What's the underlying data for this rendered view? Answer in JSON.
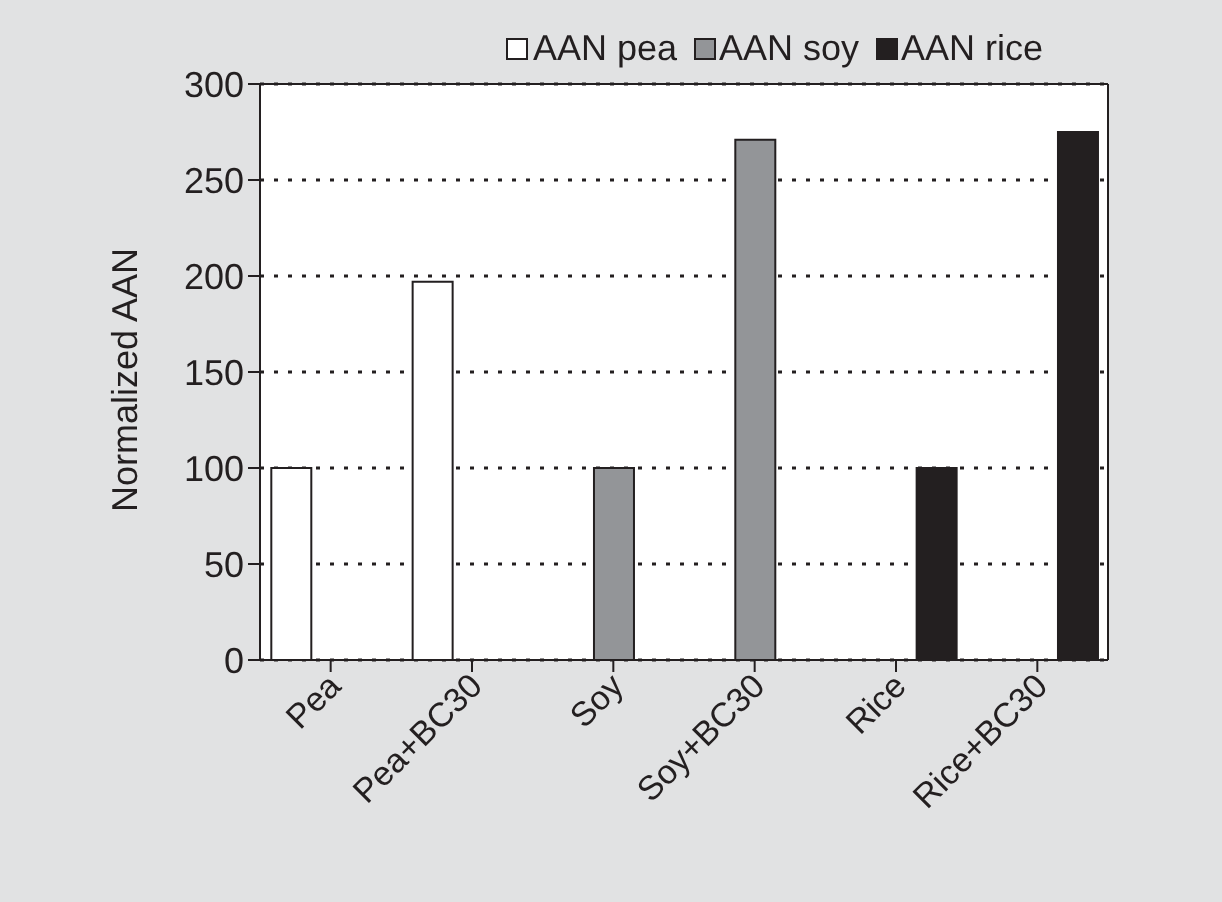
{
  "chart_data": {
    "type": "bar",
    "categories": [
      "Pea",
      "Pea+BC30",
      "Soy",
      "Soy+BC30",
      "Rice",
      "Rice+BC30"
    ],
    "series": [
      {
        "name": "AAN pea",
        "color": "#ffffff",
        "values": [
          100,
          197,
          null,
          null,
          null,
          null
        ]
      },
      {
        "name": "AAN soy",
        "color": "#939598",
        "values": [
          null,
          null,
          100,
          271,
          null,
          null
        ]
      },
      {
        "name": "AAN rice",
        "color": "#231f20",
        "values": [
          null,
          null,
          null,
          null,
          100,
          275
        ]
      }
    ],
    "ylabel": "Normalized AAN",
    "ylim": [
      0,
      300
    ],
    "yticks": [
      0,
      50,
      100,
      150,
      200,
      250,
      300
    ],
    "grid": "y",
    "legend": "top"
  }
}
